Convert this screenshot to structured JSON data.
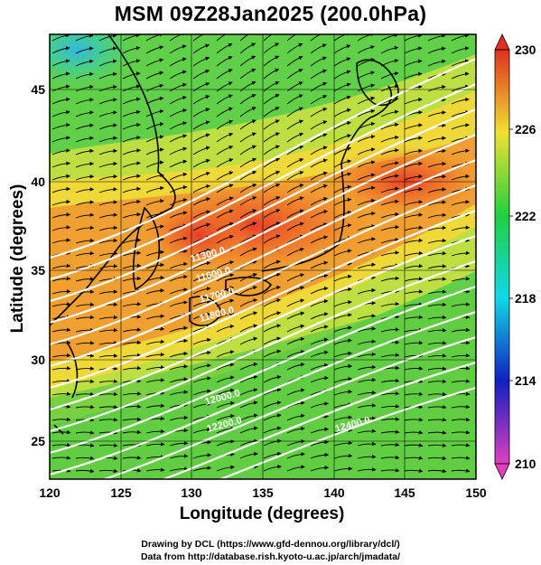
{
  "title": "MSM 09Z28Jan2025 (200.0hPa)",
  "x_axis": {
    "label": "Longitude (degrees)",
    "range": [
      120,
      150
    ],
    "ticks": [
      "120",
      "125",
      "130",
      "135",
      "140",
      "145",
      "150"
    ]
  },
  "y_axis": {
    "label": "Latitude  (degrees)",
    "range": [
      22.5,
      47.5
    ],
    "ticks": [
      "25",
      "30",
      "35",
      "40",
      "45"
    ]
  },
  "colorbar": {
    "range": [
      210,
      230
    ],
    "ticks": [
      "210",
      "214",
      "218",
      "222",
      "226",
      "230"
    ],
    "colors": [
      "#e040c0",
      "#1020c0",
      "#10d8e8",
      "#20d040",
      "#f0e030",
      "#e03020"
    ]
  },
  "contour_labels": [
    "11300.0",
    "11600.0",
    "11700.0",
    "11800.0",
    "12000.0",
    "12200.0",
    "12400.0"
  ],
  "credits": {
    "line1": "Drawing by DCL (https://www.gfd-dennou.org/library/dcl/)",
    "line2": "Data from http://database.rish.kyoto-u.ac.jp/arch/jmadata/"
  }
}
